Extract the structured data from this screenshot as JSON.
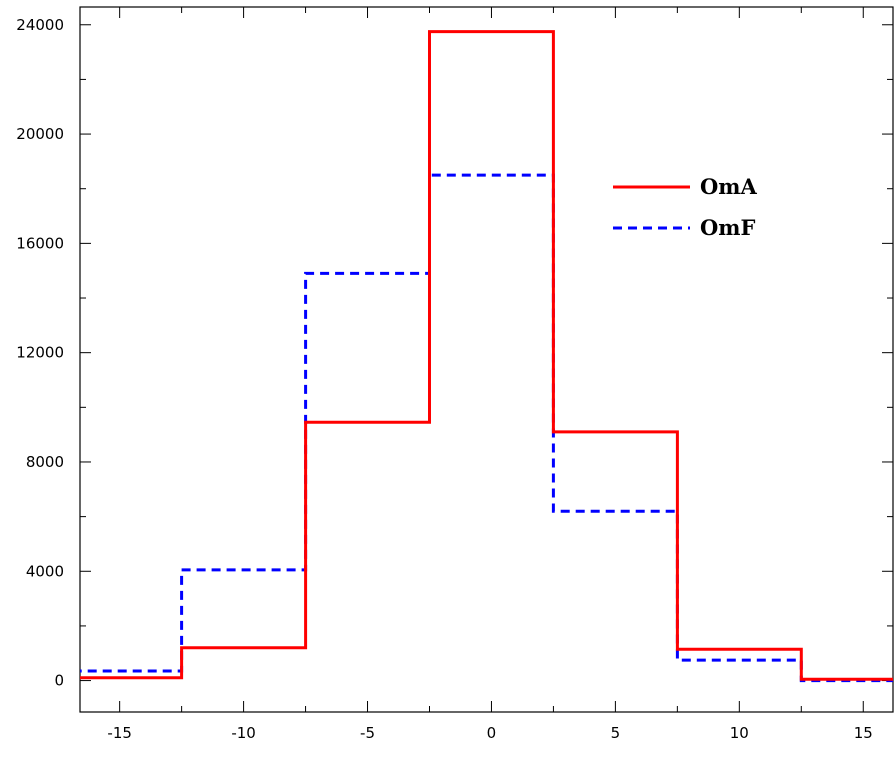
{
  "chart_data": {
    "type": "line",
    "step": true,
    "x_edges": [
      -17.5,
      -12.5,
      -7.5,
      -2.5,
      2.5,
      7.5,
      12.5,
      17.5
    ],
    "x_bins": [
      -15,
      -10,
      -5,
      0,
      5,
      10,
      15
    ],
    "xlim": [
      -16.6,
      16.2
    ],
    "ylim": [
      -1150,
      24650
    ],
    "x_ticks": [
      -15,
      -10,
      -5,
      0,
      5,
      10,
      15
    ],
    "x_tick_labels": [
      "-15",
      "-10",
      "-5",
      "0",
      "5",
      "10",
      "15"
    ],
    "y_ticks": [
      0,
      4000,
      8000,
      12000,
      16000,
      20000,
      24000
    ],
    "y_tick_labels": [
      "0",
      "4000",
      "8000",
      "12000",
      "16000",
      "20000",
      "24000"
    ],
    "series": [
      {
        "name": "OmA",
        "color": "#ff0000",
        "dash": "solid",
        "values": [
          100,
          1200,
          9450,
          23750,
          9100,
          1150,
          50
        ]
      },
      {
        "name": "OmF",
        "color": "#0000ff",
        "dash": "dashed",
        "values": [
          350,
          4050,
          14900,
          18500,
          6200,
          750,
          0
        ]
      }
    ],
    "legend_position": "upper-right",
    "grid": false,
    "title": "",
    "xlabel": "",
    "ylabel": ""
  }
}
